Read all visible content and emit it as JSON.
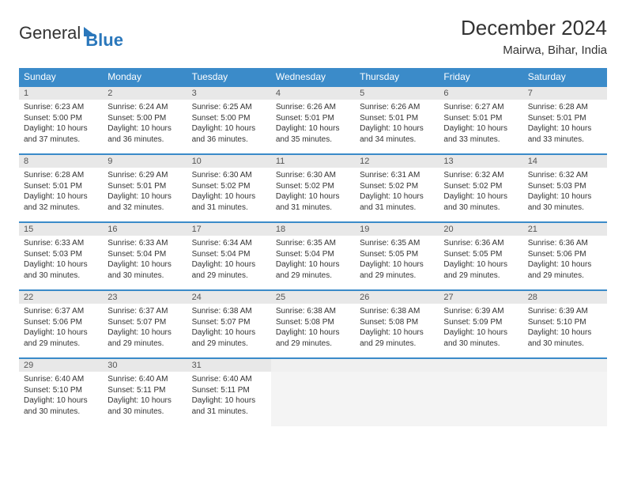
{
  "brand": {
    "part1": "General",
    "part2": "Blue"
  },
  "title": "December 2024",
  "location": "Mairwa, Bihar, India",
  "weekdays": [
    "Sunday",
    "Monday",
    "Tuesday",
    "Wednesday",
    "Thursday",
    "Friday",
    "Saturday"
  ],
  "colors": {
    "header_bg": "#3b8bc9",
    "row_divider": "#3b8bc9",
    "daynum_bg": "#e8e8e8",
    "empty_bg": "#f4f4f4",
    "brand_blue": "#2a77bb"
  },
  "weeks": [
    [
      {
        "n": "1",
        "sr": "6:23 AM",
        "ss": "5:00 PM",
        "dl": "10 hours and 37 minutes."
      },
      {
        "n": "2",
        "sr": "6:24 AM",
        "ss": "5:00 PM",
        "dl": "10 hours and 36 minutes."
      },
      {
        "n": "3",
        "sr": "6:25 AM",
        "ss": "5:00 PM",
        "dl": "10 hours and 36 minutes."
      },
      {
        "n": "4",
        "sr": "6:26 AM",
        "ss": "5:01 PM",
        "dl": "10 hours and 35 minutes."
      },
      {
        "n": "5",
        "sr": "6:26 AM",
        "ss": "5:01 PM",
        "dl": "10 hours and 34 minutes."
      },
      {
        "n": "6",
        "sr": "6:27 AM",
        "ss": "5:01 PM",
        "dl": "10 hours and 33 minutes."
      },
      {
        "n": "7",
        "sr": "6:28 AM",
        "ss": "5:01 PM",
        "dl": "10 hours and 33 minutes."
      }
    ],
    [
      {
        "n": "8",
        "sr": "6:28 AM",
        "ss": "5:01 PM",
        "dl": "10 hours and 32 minutes."
      },
      {
        "n": "9",
        "sr": "6:29 AM",
        "ss": "5:01 PM",
        "dl": "10 hours and 32 minutes."
      },
      {
        "n": "10",
        "sr": "6:30 AM",
        "ss": "5:02 PM",
        "dl": "10 hours and 31 minutes."
      },
      {
        "n": "11",
        "sr": "6:30 AM",
        "ss": "5:02 PM",
        "dl": "10 hours and 31 minutes."
      },
      {
        "n": "12",
        "sr": "6:31 AM",
        "ss": "5:02 PM",
        "dl": "10 hours and 31 minutes."
      },
      {
        "n": "13",
        "sr": "6:32 AM",
        "ss": "5:02 PM",
        "dl": "10 hours and 30 minutes."
      },
      {
        "n": "14",
        "sr": "6:32 AM",
        "ss": "5:03 PM",
        "dl": "10 hours and 30 minutes."
      }
    ],
    [
      {
        "n": "15",
        "sr": "6:33 AM",
        "ss": "5:03 PM",
        "dl": "10 hours and 30 minutes."
      },
      {
        "n": "16",
        "sr": "6:33 AM",
        "ss": "5:04 PM",
        "dl": "10 hours and 30 minutes."
      },
      {
        "n": "17",
        "sr": "6:34 AM",
        "ss": "5:04 PM",
        "dl": "10 hours and 29 minutes."
      },
      {
        "n": "18",
        "sr": "6:35 AM",
        "ss": "5:04 PM",
        "dl": "10 hours and 29 minutes."
      },
      {
        "n": "19",
        "sr": "6:35 AM",
        "ss": "5:05 PM",
        "dl": "10 hours and 29 minutes."
      },
      {
        "n": "20",
        "sr": "6:36 AM",
        "ss": "5:05 PM",
        "dl": "10 hours and 29 minutes."
      },
      {
        "n": "21",
        "sr": "6:36 AM",
        "ss": "5:06 PM",
        "dl": "10 hours and 29 minutes."
      }
    ],
    [
      {
        "n": "22",
        "sr": "6:37 AM",
        "ss": "5:06 PM",
        "dl": "10 hours and 29 minutes."
      },
      {
        "n": "23",
        "sr": "6:37 AM",
        "ss": "5:07 PM",
        "dl": "10 hours and 29 minutes."
      },
      {
        "n": "24",
        "sr": "6:38 AM",
        "ss": "5:07 PM",
        "dl": "10 hours and 29 minutes."
      },
      {
        "n": "25",
        "sr": "6:38 AM",
        "ss": "5:08 PM",
        "dl": "10 hours and 29 minutes."
      },
      {
        "n": "26",
        "sr": "6:38 AM",
        "ss": "5:08 PM",
        "dl": "10 hours and 29 minutes."
      },
      {
        "n": "27",
        "sr": "6:39 AM",
        "ss": "5:09 PM",
        "dl": "10 hours and 30 minutes."
      },
      {
        "n": "28",
        "sr": "6:39 AM",
        "ss": "5:10 PM",
        "dl": "10 hours and 30 minutes."
      }
    ],
    [
      {
        "n": "29",
        "sr": "6:40 AM",
        "ss": "5:10 PM",
        "dl": "10 hours and 30 minutes."
      },
      {
        "n": "30",
        "sr": "6:40 AM",
        "ss": "5:11 PM",
        "dl": "10 hours and 30 minutes."
      },
      {
        "n": "31",
        "sr": "6:40 AM",
        "ss": "5:11 PM",
        "dl": "10 hours and 31 minutes."
      },
      null,
      null,
      null,
      null
    ]
  ]
}
